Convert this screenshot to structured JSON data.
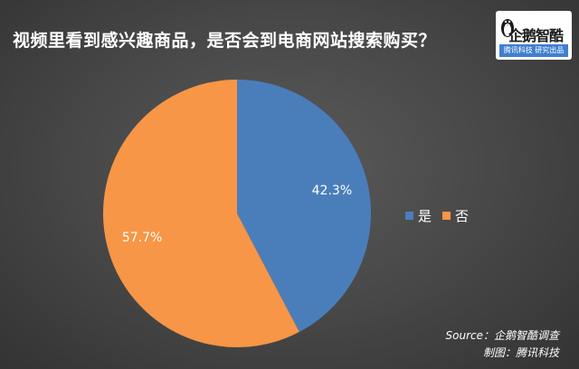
{
  "title": "视频里看到感兴趣商品，是否会到电商网站搜索购买？",
  "logo": {
    "name": "企鹅智酷",
    "tagline": "腾讯科技  研究出品"
  },
  "source": {
    "line1": "Source：企鹅智酷调查",
    "line2": "制图：腾讯科技"
  },
  "colors": {
    "background": "#464646",
    "series_yes": "#4a7ebb",
    "series_no": "#f79646",
    "text": "#ffffff"
  },
  "chart_data": {
    "type": "pie",
    "title": "视频里看到感兴趣商品，是否会到电商网站搜索购买？",
    "categories": [
      "是",
      "否"
    ],
    "values": [
      42.3,
      57.7
    ],
    "value_labels": [
      "42.3%",
      "57.7%"
    ],
    "colors": [
      "#4a7ebb",
      "#f79646"
    ],
    "start_angle": "12 o'clock, clockwise",
    "legend": "right"
  }
}
